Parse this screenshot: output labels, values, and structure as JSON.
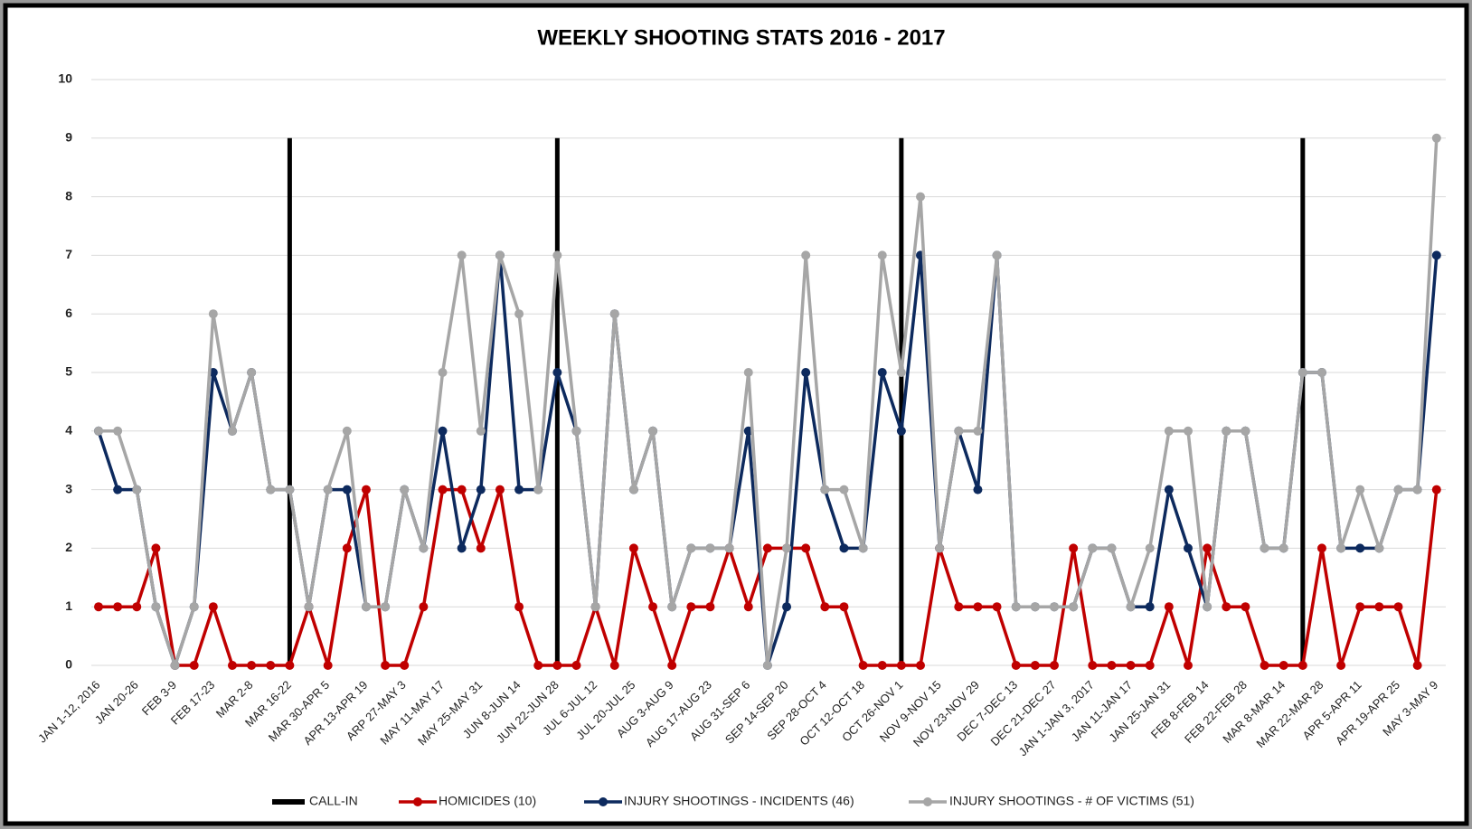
{
  "chart_data": {
    "type": "line",
    "title": "WEEKLY SHOOTING STATS 2016 - 2017",
    "categories": [
      "JAN 1-12, 2016",
      null,
      "JAN 20-26",
      null,
      "FEB 3-9",
      null,
      "FEB 17-23",
      null,
      "MAR 2-8",
      null,
      "MAR 16-22",
      null,
      "MAR 30-APR 5",
      null,
      "APR 13-APR 19",
      null,
      "ARP 27-MAY 3",
      null,
      "MAY 11-MAY 17",
      null,
      "MAY 25-MAY 31",
      null,
      "JUN 8-JUN 14",
      null,
      "JUN 22-JUN 28",
      null,
      "JUL 6-JUL 12",
      null,
      "JUL 20-JUL 25",
      null,
      "AUG 3-AUG 9",
      null,
      "AUG 17-AUG 23",
      null,
      "AUG 31-SEP 6",
      null,
      "SEP 14-SEP 20",
      null,
      "SEP 28-OCT 4",
      null,
      "OCT 12-OCT 18",
      null,
      "OCT 26-NOV 1",
      null,
      "NOV 9-NOV 15",
      null,
      "NOV 23-NOV 29",
      null,
      "DEC 7-DEC 13",
      null,
      "DEC 21-DEC 27",
      null,
      "JAN 1-JAN 3, 2017",
      null,
      "JAN 11-JAN 17",
      null,
      "JAN 25-JAN 31",
      null,
      "FEB 8-FEB 14",
      null,
      "FEB 22-FEB 28",
      null,
      "MAR 8-MAR 14",
      null,
      "MAR 22-MAR 28",
      null,
      "APR 5-APR 11",
      null,
      "APR 19-APR 25",
      null,
      "MAY 3-MAY 9"
    ],
    "call_in": {
      "name": "CALL-IN",
      "color": "#000000",
      "x": [
        10,
        24,
        42,
        63
      ],
      "y": 9
    },
    "series": [
      {
        "name": "HOMICIDES (10)",
        "color": "#c00000",
        "values": [
          1,
          1,
          1,
          2,
          0,
          0,
          1,
          0,
          0,
          0,
          0,
          1,
          0,
          2,
          3,
          0,
          0,
          1,
          3,
          3,
          2,
          3,
          1,
          0,
          0,
          0,
          1,
          0,
          2,
          1,
          0,
          1,
          1,
          2,
          1,
          2,
          2,
          2,
          1,
          1,
          0,
          0,
          0,
          0,
          2,
          1,
          1,
          1,
          0,
          0,
          0,
          2,
          0,
          0,
          0,
          0,
          1,
          0,
          2,
          1,
          1,
          0,
          0,
          0,
          2,
          0,
          1,
          1,
          1,
          0,
          3
        ]
      },
      {
        "name": "INJURY SHOOTINGS - INCIDENTS (46)",
        "color": "#0d2a5e",
        "values": [
          4,
          3,
          3,
          1,
          0,
          1,
          5,
          4,
          5,
          3,
          3,
          1,
          3,
          3,
          1,
          1,
          3,
          2,
          4,
          2,
          3,
          7,
          3,
          3,
          5,
          4,
          1,
          6,
          3,
          4,
          1,
          2,
          2,
          2,
          4,
          0,
          1,
          5,
          3,
          2,
          2,
          5,
          4,
          7,
          2,
          4,
          3,
          7,
          1,
          1,
          1,
          1,
          2,
          2,
          1,
          1,
          3,
          2,
          1,
          4,
          4,
          2,
          2,
          5,
          5,
          2,
          2,
          2,
          3,
          3,
          7
        ]
      },
      {
        "name": "INJURY SHOOTINGS - # OF VICTIMS (51)",
        "color": "#a6a6a6",
        "values": [
          4,
          4,
          3,
          1,
          0,
          1,
          6,
          4,
          5,
          3,
          3,
          1,
          3,
          4,
          1,
          1,
          3,
          2,
          5,
          7,
          4,
          7,
          6,
          3,
          7,
          4,
          1,
          6,
          3,
          4,
          1,
          2,
          2,
          2,
          5,
          0,
          2,
          7,
          3,
          3,
          2,
          7,
          5,
          8,
          2,
          4,
          4,
          7,
          1,
          1,
          1,
          1,
          2,
          2,
          1,
          2,
          4,
          4,
          1,
          4,
          4,
          2,
          2,
          5,
          5,
          2,
          3,
          2,
          3,
          3,
          9
        ]
      }
    ],
    "ylim": [
      0,
      10
    ],
    "yticks": [
      0,
      1,
      2,
      3,
      4,
      5,
      6,
      7,
      8,
      9,
      10
    ],
    "grid": true
  }
}
